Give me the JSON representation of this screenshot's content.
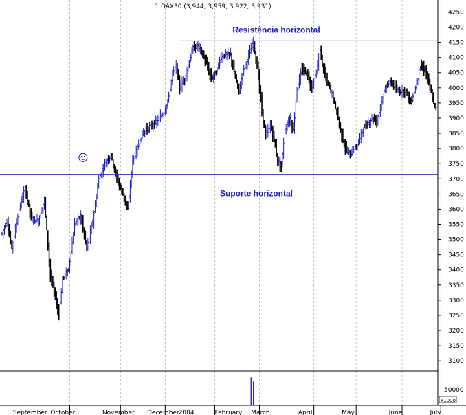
{
  "chart_data": {
    "type": "candlestick",
    "title": "1 DAX30 (3,944, 3,959, 3,922, 3,931)",
    "y_ticks": [
      3100,
      3150,
      3200,
      3250,
      3300,
      3350,
      3400,
      3450,
      3500,
      3550,
      3600,
      3650,
      3700,
      3750,
      3800,
      3850,
      3900,
      3950,
      4000,
      4050,
      4100,
      4150,
      4200,
      4250
    ],
    "ylim": [
      3080,
      4270
    ],
    "x_labels": [
      "September",
      "October",
      "November",
      "December",
      "2004",
      "February",
      "March",
      "April",
      "May",
      "June",
      "July"
    ],
    "x_label_index": [
      9,
      40,
      83,
      120,
      146,
      176,
      206,
      245,
      281,
      320,
      354
    ],
    "x_gridline_index": [
      23,
      56,
      98,
      135,
      176,
      213,
      258,
      293,
      331,
      363
    ],
    "annotations": [
      {
        "text": "Resistência horizontal",
        "value": 4155,
        "start_index": 147
      },
      {
        "text": "Suporte horizontal",
        "value": 3715,
        "start_index": 0
      }
    ],
    "volume_axis": {
      "tick_label": "50000",
      "unit_label": "x1000"
    },
    "volume_bars": [
      {
        "index": 206,
        "value": 83000
      },
      {
        "index": 208,
        "value": 71000
      }
    ],
    "volume_ylim": [
      0,
      100000
    ],
    "smiley_index": 67,
    "smiley_value": 3770,
    "bull_color": "#0000c8",
    "bear_color": "#000000",
    "line_color": "#3030c0",
    "anno_color": "#1c1cc4",
    "anchors": [
      [
        0,
        3520
      ],
      [
        4,
        3560
      ],
      [
        8,
        3470
      ],
      [
        14,
        3600
      ],
      [
        19,
        3670
      ],
      [
        24,
        3570
      ],
      [
        30,
        3560
      ],
      [
        35,
        3630
      ],
      [
        40,
        3380
      ],
      [
        44,
        3310
      ],
      [
        47,
        3250
      ],
      [
        50,
        3370
      ],
      [
        55,
        3400
      ],
      [
        60,
        3550
      ],
      [
        65,
        3580
      ],
      [
        70,
        3470
      ],
      [
        75,
        3560
      ],
      [
        80,
        3700
      ],
      [
        85,
        3750
      ],
      [
        90,
        3780
      ],
      [
        95,
        3700
      ],
      [
        100,
        3650
      ],
      [
        104,
        3600
      ],
      [
        108,
        3760
      ],
      [
        112,
        3800
      ],
      [
        116,
        3850
      ],
      [
        122,
        3870
      ],
      [
        126,
        3880
      ],
      [
        130,
        3900
      ],
      [
        134,
        3920
      ],
      [
        138,
        3970
      ],
      [
        141,
        4050
      ],
      [
        144,
        4070
      ],
      [
        147,
        4000
      ],
      [
        151,
        4030
      ],
      [
        155,
        4090
      ],
      [
        158,
        4130
      ],
      [
        162,
        4140
      ],
      [
        166,
        4110
      ],
      [
        169,
        4080
      ],
      [
        173,
        4030
      ],
      [
        177,
        4050
      ],
      [
        181,
        4100
      ],
      [
        185,
        4110
      ],
      [
        189,
        4110
      ],
      [
        192,
        4050
      ],
      [
        196,
        3990
      ],
      [
        199,
        4050
      ],
      [
        202,
        4080
      ],
      [
        205,
        4120
      ],
      [
        208,
        4150
      ],
      [
        212,
        4040
      ],
      [
        215,
        3920
      ],
      [
        218,
        3840
      ],
      [
        222,
        3880
      ],
      [
        225,
        3830
      ],
      [
        228,
        3760
      ],
      [
        231,
        3740
      ],
      [
        234,
        3860
      ],
      [
        238,
        3900
      ],
      [
        241,
        3860
      ],
      [
        244,
        4000
      ],
      [
        248,
        4060
      ],
      [
        252,
        4050
      ],
      [
        256,
        4000
      ],
      [
        260,
        4050
      ],
      [
        263,
        4120
      ],
      [
        266,
        4060
      ],
      [
        269,
        4020
      ],
      [
        273,
        3980
      ],
      [
        277,
        3920
      ],
      [
        280,
        3860
      ],
      [
        284,
        3800
      ],
      [
        288,
        3780
      ],
      [
        291,
        3800
      ],
      [
        294,
        3810
      ],
      [
        298,
        3860
      ],
      [
        302,
        3880
      ],
      [
        306,
        3900
      ],
      [
        310,
        3890
      ],
      [
        314,
        3960
      ],
      [
        318,
        4010
      ],
      [
        322,
        4020
      ],
      [
        326,
        3990
      ],
      [
        330,
        3990
      ],
      [
        334,
        3990
      ],
      [
        338,
        3950
      ],
      [
        342,
        4000
      ],
      [
        346,
        4070
      ],
      [
        350,
        4060
      ],
      [
        354,
        4000
      ],
      [
        357,
        3950
      ],
      [
        359,
        3931
      ]
    ]
  }
}
